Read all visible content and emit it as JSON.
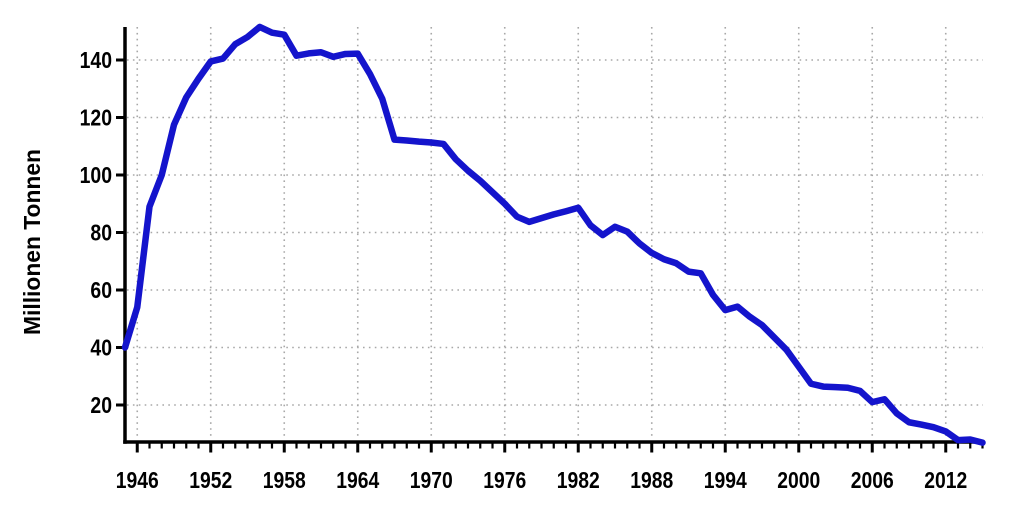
{
  "chart_data": {
    "type": "line",
    "title": "",
    "xlabel": "",
    "ylabel": "Millionen Tonnen",
    "legend_position": "none",
    "grid": true,
    "grid_style": "dotted",
    "line_color": "#1414cc",
    "grid_color": "#a8a8a8",
    "axis_color": "#000000",
    "background_color": "#ffffff",
    "xlim": [
      1945,
      2015
    ],
    "ylim": [
      7,
      152
    ],
    "x_ticks": [
      1946,
      1952,
      1958,
      1964,
      1970,
      1976,
      1982,
      1988,
      1994,
      2000,
      2006,
      2012
    ],
    "y_ticks": [
      20,
      40,
      60,
      80,
      100,
      120,
      140
    ],
    "x": [
      1945,
      1946,
      1947,
      1948,
      1949,
      1950,
      1951,
      1952,
      1953,
      1954,
      1955,
      1956,
      1957,
      1958,
      1959,
      1960,
      1961,
      1962,
      1963,
      1964,
      1965,
      1966,
      1967,
      1968,
      1969,
      1970,
      1971,
      1972,
      1973,
      1974,
      1975,
      1976,
      1977,
      1978,
      1979,
      1980,
      1981,
      1982,
      1983,
      1984,
      1985,
      1986,
      1987,
      1988,
      1989,
      1990,
      1991,
      1992,
      1993,
      1994,
      1995,
      1996,
      1997,
      1998,
      1999,
      2000,
      2001,
      2002,
      2003,
      2004,
      2005,
      2006,
      2007,
      2008,
      2009,
      2010,
      2011,
      2012,
      2013,
      2014,
      2015
    ],
    "values": [
      40,
      54,
      89,
      100,
      117.5,
      127,
      133.5,
      139.5,
      140.5,
      145.5,
      148,
      151.5,
      149.5,
      148.8,
      141.5,
      142.3,
      142.7,
      141.1,
      142.1,
      142.2,
      135.1,
      126.5,
      112.3,
      112,
      111.6,
      111.3,
      110.8,
      105.5,
      101.5,
      98,
      94,
      90,
      85.5,
      83.7,
      85,
      86.3,
      87.4,
      88.6,
      82.5,
      79.1,
      82,
      80.3,
      76.2,
      72.9,
      70.7,
      69.3,
      66.4,
      65.8,
      58.3,
      53,
      54.2,
      50.7,
      47.8,
      43.5,
      39.2,
      33.3,
      27.4,
      26.4,
      26.2,
      26,
      24.9,
      21,
      22,
      17.1,
      14,
      13.2,
      12.3,
      10.8,
      7.8,
      8,
      6.9
    ]
  }
}
